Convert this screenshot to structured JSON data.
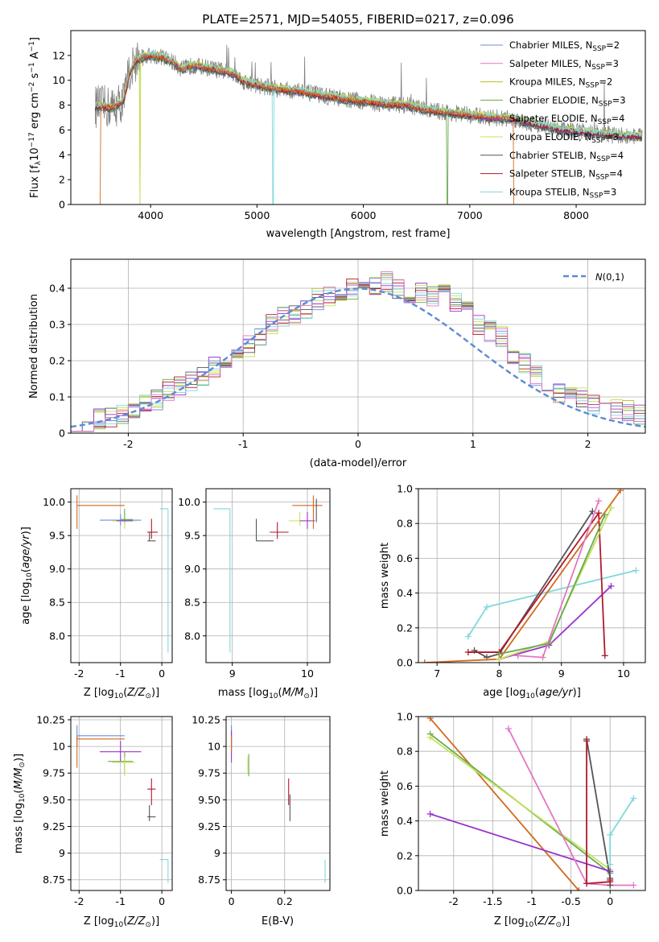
{
  "title": "PLATE=2571, MJD=54055, FIBERID=0217, z=0.096",
  "colors": {
    "Chabrier MILES": "#6b8fd6",
    "Salpeter MILES": "#e377c2",
    "Kroupa MILES": "#bcbd22",
    "Chabrier ELODIE": "#6aa84f",
    "Salpeter ELODIE": "#9a32cd",
    "Kroupa ELODIE": "#c2e35a",
    "Chabrier STELIB": "#555555",
    "Salpeter STELIB": "#b2182b",
    "Kroupa STELIB": "#7fd8dc",
    "orange": "#d2691e",
    "gray_spec": "#808080",
    "grid": "#b0b0b0",
    "gauss": "#5b8bd5"
  },
  "chart_data": [
    {
      "id": "spectrum",
      "type": "line",
      "title": "PLATE=2571, MJD=54055, FIBERID=0217, z=0.096",
      "xlabel": "wavelength [Angstrom, rest frame]",
      "ylabel": "Flux [fλ10⁻¹⁷ erg cm⁻² s⁻¹ A⁻¹]",
      "xlim": [
        3250,
        8650
      ],
      "ylim": [
        0,
        14
      ],
      "xticks": [
        4000,
        5000,
        6000,
        7000,
        8000
      ],
      "yticks": [
        0,
        2,
        4,
        6,
        8,
        10,
        12
      ],
      "grid": false,
      "legend_position": "top-right",
      "legend": [
        "Chabrier MILES, N_SSP=2",
        "Salpeter MILES, N_SSP=3",
        "Kroupa MILES, N_SSP=2",
        "Chabrier ELODIE, N_SSP=3",
        "Salpeter ELODIE, N_SSP=4",
        "Kroupa ELODIE, N_SSP=3",
        "Chabrier STELIB, N_SSP=4",
        "Salpeter STELIB, N_SSP=4",
        "Kroupa STELIB, N_SSP=3"
      ],
      "legend_display": [
        [
          "Chabrier MILES, N",
          "SSP",
          "=2"
        ],
        [
          "Salpeter MILES, N",
          "SSP",
          "=3"
        ],
        [
          "Kroupa MILES, N",
          "SSP",
          "=2"
        ],
        [
          "Chabrier ELODIE, N",
          "SSP",
          "=3"
        ],
        [
          "Salpeter ELODIE, N",
          "SSP",
          "=4"
        ],
        [
          "Kroupa ELODIE, N",
          "SSP",
          "=3"
        ],
        [
          "Chabrier STELIB, N",
          "SSP",
          "=4"
        ],
        [
          "Salpeter STELIB, N",
          "SSP",
          "=4"
        ],
        [
          "Kroupa STELIB, N",
          "SSP",
          "=3"
        ]
      ],
      "continuum": {
        "x": [
          3500,
          3650,
          3750,
          3800,
          3850,
          3900,
          4000,
          4100,
          4200,
          4300,
          4400,
          4600,
          4800,
          4850,
          5000,
          5200,
          5400,
          5600,
          5800,
          6000,
          6200,
          6400,
          6600,
          6800,
          7000,
          7200,
          7400,
          7600,
          7800,
          8000,
          8200,
          8500
        ],
        "y": [
          7.9,
          7.8,
          8.4,
          10.5,
          11.5,
          11.8,
          12.0,
          11.9,
          11.5,
          10.9,
          11.2,
          10.9,
          10.5,
          10.0,
          9.6,
          9.3,
          9.1,
          8.8,
          8.5,
          8.3,
          8.1,
          8.0,
          7.6,
          7.4,
          7.2,
          7.0,
          6.9,
          6.5,
          6.1,
          5.9,
          5.7,
          5.5
        ]
      }
    },
    {
      "id": "residuals",
      "type": "line",
      "xlabel": "(data-model)/error",
      "ylabel": "Normed distribution",
      "xlim": [
        -2.5,
        2.5
      ],
      "ylim": [
        0,
        0.48
      ],
      "xticks": [
        -2,
        -1,
        0,
        1,
        2
      ],
      "yticks": [
        0.0,
        0.1,
        0.2,
        0.3,
        0.4
      ],
      "grid": true,
      "legend_position": "top-right",
      "legend": [
        "N(0,1)"
      ],
      "bin_edges_step": 0.1,
      "hist_base": [
        0.03,
        0.03,
        0.04,
        0.04,
        0.05,
        0.07,
        0.09,
        0.09,
        0.12,
        0.13,
        0.14,
        0.16,
        0.18,
        0.2,
        0.22,
        0.24,
        0.26,
        0.3,
        0.32,
        0.33,
        0.34,
        0.37,
        0.38,
        0.39,
        0.4,
        0.42,
        0.41,
        0.42,
        0.4,
        0.38,
        0.39,
        0.38,
        0.38,
        0.36,
        0.34,
        0.3,
        0.28,
        0.27,
        0.22,
        0.19,
        0.16,
        0.13,
        0.11,
        0.12,
        0.1,
        0.08,
        0.08,
        0.07,
        0.06,
        0.05
      ]
    },
    {
      "id": "age_vs_Z",
      "type": "scatter",
      "xlabel": "Z [log10(Z/Z⊙)]",
      "ylabel": "age [log10(age/yr)]",
      "xlim": [
        -2.2,
        0.25
      ],
      "ylim": [
        7.6,
        10.2
      ],
      "xticks": [
        -2,
        -1,
        0
      ],
      "yticks": [
        8.0,
        8.5,
        9.0,
        9.5,
        10.0
      ],
      "grid": true
    },
    {
      "id": "age_vs_mass",
      "type": "scatter",
      "xlabel": "mass [log10(M/M⊙)]",
      "ylabel": "",
      "xlim": [
        8.65,
        10.3
      ],
      "ylim": [
        7.6,
        10.2
      ],
      "xticks": [
        9,
        10
      ],
      "yticks": [
        8.0,
        8.5,
        9.0,
        9.5,
        10.0
      ],
      "grid": true
    },
    {
      "id": "weight_vs_age",
      "type": "line",
      "xlabel": "age [log10(age/yr)]",
      "ylabel": "mass weight",
      "xlim": [
        6.7,
        10.35
      ],
      "ylim": [
        0,
        1
      ],
      "xticks": [
        7,
        8,
        9,
        10
      ],
      "yticks": [
        0.0,
        0.2,
        0.4,
        0.6,
        0.8,
        1.0
      ],
      "grid": true,
      "series": [
        {
          "color": "Kroupa STELIB",
          "x": [
            7.5,
            7.8,
            10.2
          ],
          "y": [
            0.15,
            0.32,
            0.53
          ]
        },
        {
          "color": "Salpeter ELODIE",
          "x": [
            8.0,
            8.8,
            9.8
          ],
          "y": [
            0.02,
            0.1,
            0.44
          ]
        },
        {
          "color": "Chabrier STELIB",
          "x": [
            7.6,
            7.8,
            8.0,
            9.5
          ],
          "y": [
            0.07,
            0.03,
            0.05,
            0.87
          ]
        },
        {
          "color": "Salpeter STELIB",
          "x": [
            7.5,
            8.0,
            9.6,
            9.7
          ],
          "y": [
            0.06,
            0.06,
            0.86,
            0.04
          ]
        },
        {
          "color": "orange",
          "x": [
            6.8,
            8.0,
            9.95
          ],
          "y": [
            0.0,
            0.02,
            0.99
          ]
        },
        {
          "color": "Kroupa ELODIE",
          "x": [
            8.0,
            8.8,
            9.8
          ],
          "y": [
            0.02,
            0.12,
            0.89
          ]
        },
        {
          "color": "Chabrier ELODIE",
          "x": [
            8.0,
            8.8,
            9.7
          ],
          "y": [
            0.05,
            0.11,
            0.85
          ]
        },
        {
          "color": "Salpeter MILES",
          "x": [
            8.3,
            8.7,
            9.6
          ],
          "y": [
            0.04,
            0.03,
            0.93
          ]
        }
      ]
    },
    {
      "id": "mass_vs_Z",
      "type": "scatter",
      "xlabel": "Z [log10(Z/Z⊙)]",
      "ylabel": "mass [log10(M/M⊙)]",
      "xlim": [
        -2.2,
        0.25
      ],
      "ylim": [
        8.65,
        10.28
      ],
      "xticks": [
        -2,
        -1,
        0
      ],
      "yticks": [
        8.75,
        9.0,
        9.25,
        9.5,
        9.75,
        10.0,
        10.25
      ],
      "grid": true
    },
    {
      "id": "mass_vs_ebv",
      "type": "scatter",
      "xlabel": "E(B-V)",
      "ylabel": "",
      "xlim": [
        -0.02,
        0.37
      ],
      "ylim": [
        8.65,
        10.28
      ],
      "xticks": [
        0.0,
        0.2
      ],
      "yticks": [
        8.75,
        9.0,
        9.25,
        9.5,
        9.75,
        10.0,
        10.25
      ],
      "grid": true
    },
    {
      "id": "weight_vs_Z",
      "type": "line",
      "xlabel": "Z [log10(Z/Z⊙)]",
      "ylabel": "mass weight",
      "xlim": [
        -2.45,
        0.45
      ],
      "ylim": [
        0,
        1
      ],
      "xticks": [
        -2.0,
        -1.5,
        -1.0,
        -0.5,
        0.0
      ],
      "yticks": [
        0.0,
        0.2,
        0.4,
        0.6,
        0.8,
        1.0
      ],
      "grid": true,
      "series": [
        {
          "color": "orange",
          "x": [
            -2.3,
            -0.4
          ],
          "y": [
            0.99,
            0.0
          ]
        },
        {
          "color": "Chabrier ELODIE",
          "x": [
            -2.3,
            0.0
          ],
          "y": [
            0.9,
            0.1
          ]
        },
        {
          "color": "Kroupa ELODIE",
          "x": [
            -2.3,
            0.0
          ],
          "y": [
            0.88,
            0.12
          ]
        },
        {
          "color": "Salpeter ELODIE",
          "x": [
            -2.3,
            0.0
          ],
          "y": [
            0.44,
            0.11
          ]
        },
        {
          "color": "Salpeter MILES",
          "x": [
            -1.3,
            -0.3,
            0.0,
            0.3
          ],
          "y": [
            0.93,
            0.04,
            0.03,
            0.03
          ]
        },
        {
          "color": "Chabrier STELIB",
          "x": [
            -0.3,
            0.0,
            0.0
          ],
          "y": [
            0.87,
            0.07,
            0.03
          ]
        },
        {
          "color": "Salpeter STELIB",
          "x": [
            -0.3,
            -0.3,
            0.0,
            0.0
          ],
          "y": [
            0.86,
            0.04,
            0.05,
            0.06
          ]
        },
        {
          "color": "Kroupa STELIB",
          "x": [
            0.0,
            0.0,
            0.3
          ],
          "y": [
            0.15,
            0.32,
            0.53
          ]
        }
      ]
    }
  ]
}
